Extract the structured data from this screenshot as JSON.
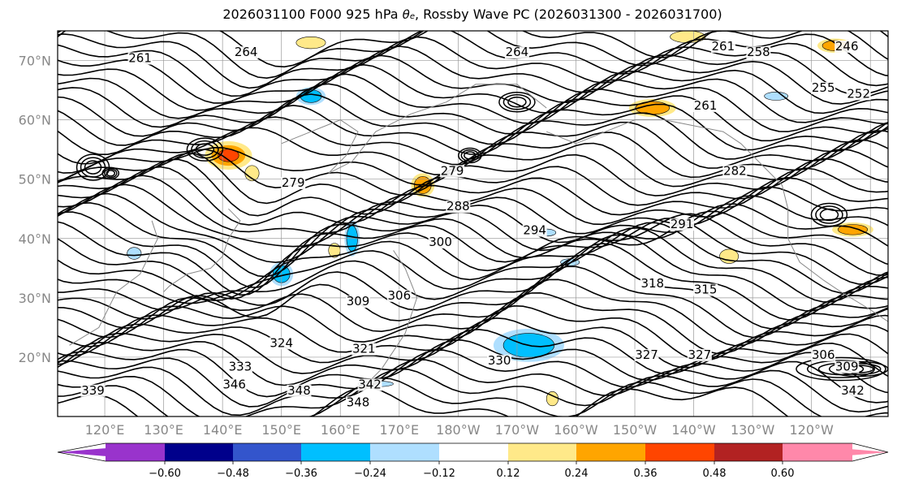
{
  "chart_data": {
    "type": "contour_map",
    "title_prefix": "2026031100 F000 925 hPa ",
    "title_symbol": "θ",
    "title_symbol_sub": "e",
    "title_suffix": ", Rossby Wave PC (2026031300 - 2026031700)",
    "lon_ticks": [
      "120°E",
      "130°E",
      "140°E",
      "150°E",
      "160°E",
      "170°E",
      "180°W",
      "170°W",
      "160°W",
      "150°W",
      "140°W",
      "130°W",
      "120°W"
    ],
    "lon_values": [
      120,
      130,
      140,
      150,
      160,
      170,
      180,
      190,
      200,
      210,
      220,
      230,
      240
    ],
    "lon_range": [
      112,
      253
    ],
    "lat_ticks": [
      "70°N",
      "60°N",
      "50°N",
      "40°N",
      "30°N",
      "20°N"
    ],
    "lat_values": [
      70,
      60,
      50,
      40,
      30,
      20
    ],
    "lat_range": [
      10,
      75
    ],
    "grid": true,
    "contour_labels": [
      {
        "text": "264",
        "lon": 190,
        "lat": 71
      },
      {
        "text": "264",
        "lon": 144,
        "lat": 71
      },
      {
        "text": "261",
        "lon": 126,
        "lat": 70
      },
      {
        "text": "261",
        "lon": 225,
        "lat": 72
      },
      {
        "text": "258",
        "lon": 231,
        "lat": 71
      },
      {
        "text": "246",
        "lon": 246,
        "lat": 72
      },
      {
        "text": "255",
        "lon": 242,
        "lat": 65
      },
      {
        "text": "252",
        "lon": 248,
        "lat": 64
      },
      {
        "text": "261",
        "lon": 222,
        "lat": 62
      },
      {
        "text": "279",
        "lon": 179,
        "lat": 51
      },
      {
        "text": "282",
        "lon": 227,
        "lat": 51
      },
      {
        "text": "288",
        "lon": 180,
        "lat": 45
      },
      {
        "text": "291",
        "lon": 218,
        "lat": 42
      },
      {
        "text": "294",
        "lon": 193,
        "lat": 41
      },
      {
        "text": "300",
        "lon": 177,
        "lat": 39
      },
      {
        "text": "306",
        "lon": 170,
        "lat": 30
      },
      {
        "text": "309",
        "lon": 163,
        "lat": 29
      },
      {
        "text": "318",
        "lon": 213,
        "lat": 32
      },
      {
        "text": "315",
        "lon": 222,
        "lat": 31
      },
      {
        "text": "321",
        "lon": 164,
        "lat": 21
      },
      {
        "text": "324",
        "lon": 150,
        "lat": 22
      },
      {
        "text": "330",
        "lon": 187,
        "lat": 19
      },
      {
        "text": "327",
        "lon": 212,
        "lat": 20
      },
      {
        "text": "327",
        "lon": 221,
        "lat": 20
      },
      {
        "text": "333",
        "lon": 143,
        "lat": 18
      },
      {
        "text": "342",
        "lon": 165,
        "lat": 15
      },
      {
        "text": "346",
        "lon": 142,
        "lat": 15
      },
      {
        "text": "348",
        "lon": 153,
        "lat": 14
      },
      {
        "text": "348",
        "lon": 163,
        "lat": 12
      },
      {
        "text": "339",
        "lon": 118,
        "lat": 14
      },
      {
        "text": "306",
        "lon": 242,
        "lat": 20
      },
      {
        "text": "309",
        "lon": 246,
        "lat": 18
      },
      {
        "text": "342",
        "lon": 247,
        "lat": 14
      },
      {
        "text": "279",
        "lon": 152,
        "lat": 49
      }
    ],
    "shaded_regions": [
      {
        "sign": "pos",
        "value": 0.42,
        "lon": 141,
        "lat": 54,
        "rx": 4,
        "ry": 2.4
      },
      {
        "sign": "pos",
        "value": 0.3,
        "lon": 213,
        "lat": 62,
        "rx": 4,
        "ry": 1.5
      },
      {
        "sign": "pos",
        "value": 0.3,
        "lon": 247,
        "lat": 41.5,
        "rx": 3.5,
        "ry": 1.2
      },
      {
        "sign": "pos",
        "value": 0.26,
        "lon": 174,
        "lat": 49,
        "rx": 2,
        "ry": 2
      },
      {
        "sign": "pos",
        "value": 0.22,
        "lon": 226,
        "lat": 37,
        "rx": 1.6,
        "ry": 1.2
      },
      {
        "sign": "pos",
        "value": 0.24,
        "lon": 244,
        "lat": 72.5,
        "rx": 3,
        "ry": 1.2
      },
      {
        "sign": "pos",
        "value": 0.22,
        "lon": 155,
        "lat": 73,
        "rx": 2.5,
        "ry": 1
      },
      {
        "sign": "pos",
        "value": 0.22,
        "lon": 219,
        "lat": 74,
        "rx": 3,
        "ry": 1
      },
      {
        "sign": "pos",
        "value": 0.2,
        "lon": 159,
        "lat": 38,
        "rx": 1,
        "ry": 1.2
      },
      {
        "sign": "pos",
        "value": 0.22,
        "lon": 196,
        "lat": 13,
        "rx": 1,
        "ry": 1.2
      },
      {
        "sign": "pos",
        "value": 0.16,
        "lon": 145,
        "lat": 51,
        "rx": 1.2,
        "ry": 1.3
      },
      {
        "sign": "neg",
        "value": -0.34,
        "lon": 192,
        "lat": 22,
        "rx": 6,
        "ry": 2.8
      },
      {
        "sign": "neg",
        "value": -0.3,
        "lon": 162,
        "lat": 40,
        "rx": 1.3,
        "ry": 3
      },
      {
        "sign": "neg",
        "value": -0.3,
        "lon": 150,
        "lat": 34,
        "rx": 2,
        "ry": 2
      },
      {
        "sign": "neg",
        "value": -0.28,
        "lon": 155,
        "lat": 64,
        "rx": 2.5,
        "ry": 1.5
      },
      {
        "sign": "neg",
        "value": -0.22,
        "lon": 195,
        "lat": 41,
        "rx": 1.6,
        "ry": 0.6
      },
      {
        "sign": "neg",
        "value": -0.2,
        "lon": 199,
        "lat": 36,
        "rx": 1.6,
        "ry": 0.6
      },
      {
        "sign": "neg",
        "value": -0.2,
        "lon": 125,
        "lat": 37.5,
        "rx": 1.2,
        "ry": 1
      },
      {
        "sign": "neg",
        "value": -0.2,
        "lon": 166,
        "lat": 15.5,
        "rx": 3,
        "ry": 0.5
      },
      {
        "sign": "neg",
        "value": -0.2,
        "lon": 234,
        "lat": 64,
        "rx": 2,
        "ry": 0.7
      }
    ],
    "colorbar": {
      "ticks": [
        "−0.60",
        "−0.48",
        "−0.36",
        "−0.24",
        "−0.12",
        "0.12",
        "0.24",
        "0.36",
        "0.48",
        "0.60"
      ],
      "colors": [
        "#9933cc",
        "#00008b",
        "#3355cc",
        "#00bfff",
        "#afdfff",
        "#ffffff",
        "#ffe989",
        "#ffa500",
        "#ff4500",
        "#b22222",
        "#ff88aa"
      ]
    }
  }
}
